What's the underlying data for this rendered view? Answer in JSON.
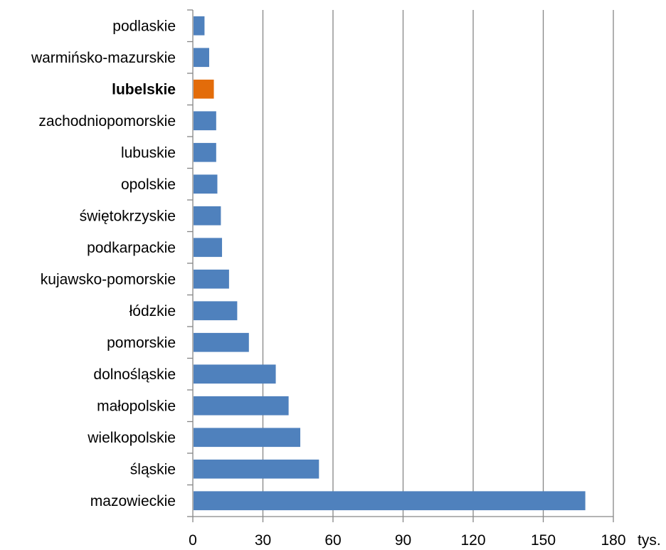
{
  "chart_data": {
    "type": "bar",
    "orientation": "horizontal",
    "categories": [
      "podlaskie",
      "warmińsko-mazurskie",
      "lubelskie",
      "zachodniopomorskie",
      "lubuskie",
      "opolskie",
      "świętokrzyskie",
      "podkarpackie",
      "kujawsko-pomorskie",
      "łódzkie",
      "pomorskie",
      "dolnośląskie",
      "małopolskie",
      "wielkopolskie",
      "śląskie",
      "mazowieckie"
    ],
    "values": [
      5,
      7,
      9,
      10,
      10,
      10.5,
      12,
      12.5,
      15.5,
      19,
      24,
      35.5,
      41,
      46,
      54,
      168
    ],
    "highlight_category": "lubelskie",
    "colors": {
      "bar": "#4F81BD",
      "highlight": "#E36C0A",
      "gridline": "#868686",
      "axis": "#868686"
    },
    "xlim": [
      0,
      180
    ],
    "xticks": [
      0,
      30,
      60,
      90,
      120,
      150,
      180
    ],
    "xticklabels": [
      "0",
      "30",
      "60",
      "90",
      "120",
      "150",
      "180"
    ],
    "x_unit": "tys.",
    "grid": true,
    "legend": "none"
  }
}
